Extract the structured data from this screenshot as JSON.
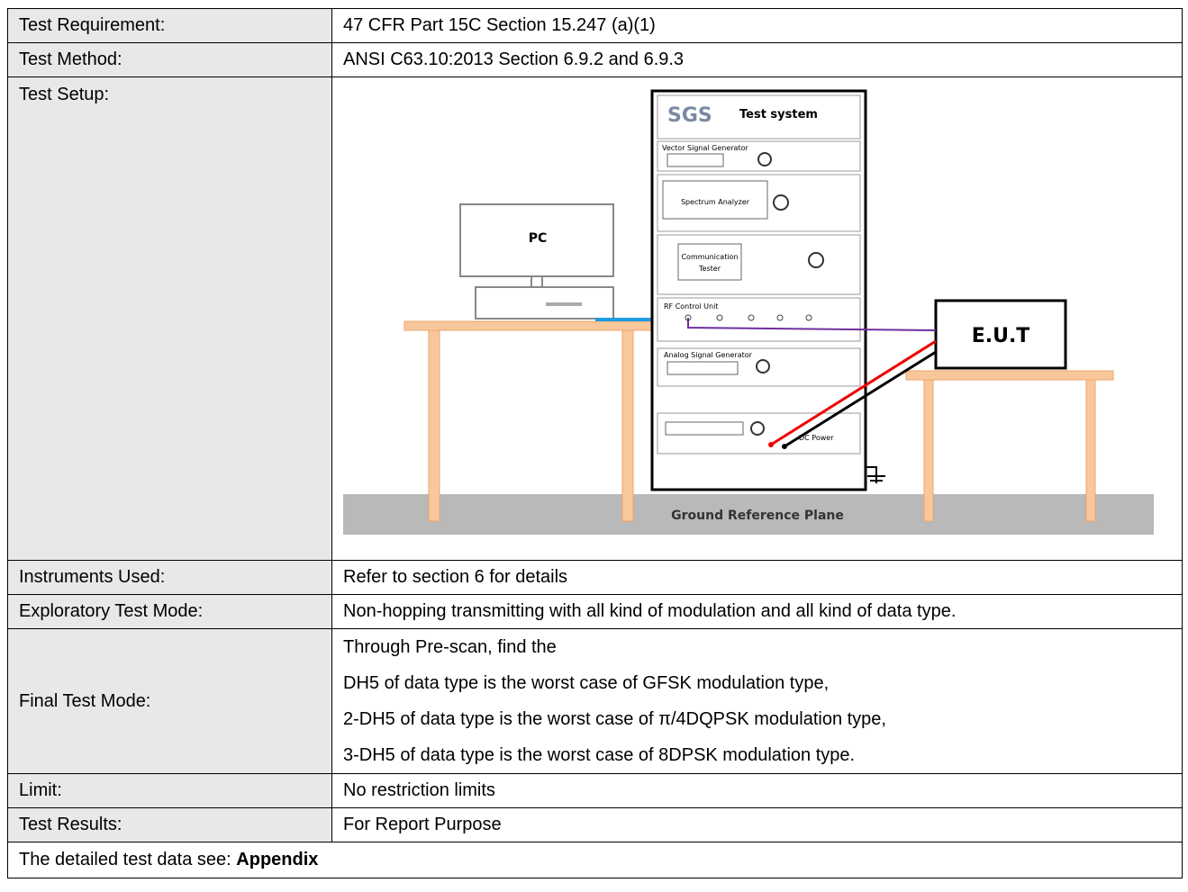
{
  "table": {
    "rows": [
      {
        "label": "Test Requirement:",
        "value": "47 CFR Part 15C Section 15.247 (a)(1)"
      },
      {
        "label": "Test Method:",
        "value": "ANSI C63.10:2013 Section 6.9.2 and 6.9.3"
      },
      {
        "label": "Test Setup:"
      },
      {
        "label": "Instruments Used:",
        "value": "Refer to section 6 for details"
      },
      {
        "label": "Exploratory Test Mode:",
        "value": "Non-hopping transmitting with all kind of modulation and all kind of data type."
      },
      {
        "label": "Final Test Mode:",
        "lines": [
          "Through Pre-scan, find the",
          "DH5 of data type is the worst case of GFSK modulation type,",
          "2-DH5 of data type is the worst case of π/4DQPSK modulation type,",
          "3-DH5 of data type is the worst case of 8DPSK modulation type."
        ]
      },
      {
        "label": "Limit:",
        "value": "No restriction limits"
      },
      {
        "label": "Test Results:",
        "value": "For Report Purpose"
      }
    ]
  },
  "footer": {
    "text": "The detailed test data see: ",
    "bold": "Appendix"
  },
  "diagram": {
    "logo": "SGS",
    "title": "Test system",
    "vsg": "Vector Signal Generator",
    "sa": "Spectrum Analyzer",
    "ct": [
      "Communication",
      "Tester"
    ],
    "rf": "RF Control Unit",
    "asg": "Analog Signal Generator",
    "dc": "DC Power",
    "pc": "PC",
    "eut": "E.U.T",
    "ground": "Ground Reference Plane"
  }
}
